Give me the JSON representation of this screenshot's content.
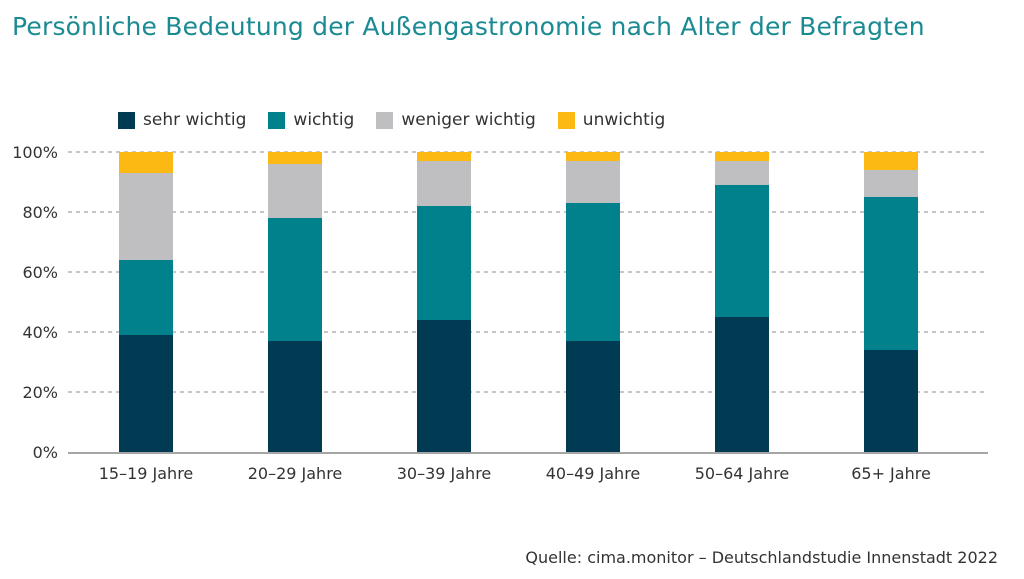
{
  "title": "Persönliche Bedeutung der Außengastronomie nach Alter der Befragten",
  "source": "Quelle: cima.monitor – Deutschlandstudie Innenstadt 2022",
  "colors": {
    "sehr wichtig": "#003a53",
    "wichtig": "#00818c",
    "weniger wichtig": "#bfbfc1",
    "unwichtig": "#fdb913"
  },
  "chart_data": {
    "type": "bar",
    "stacked": true,
    "categories": [
      "15–19 Jahre",
      "20–29 Jahre",
      "30–39 Jahre",
      "40–49 Jahre",
      "50–64 Jahre",
      "65+ Jahre"
    ],
    "series": [
      {
        "name": "sehr wichtig",
        "values": [
          39,
          37,
          44,
          37,
          45,
          34
        ]
      },
      {
        "name": "wichtig",
        "values": [
          25,
          41,
          38,
          46,
          44,
          51
        ]
      },
      {
        "name": "weniger wichtig",
        "values": [
          29,
          18,
          15,
          14,
          8,
          9
        ]
      },
      {
        "name": "unwichtig",
        "values": [
          7,
          4,
          3,
          3,
          3,
          6
        ]
      }
    ],
    "yticks": [
      "0%",
      "20%",
      "40%",
      "60%",
      "80%",
      "100%"
    ],
    "ylim": [
      0,
      100
    ],
    "grid": true,
    "legend": "top"
  }
}
